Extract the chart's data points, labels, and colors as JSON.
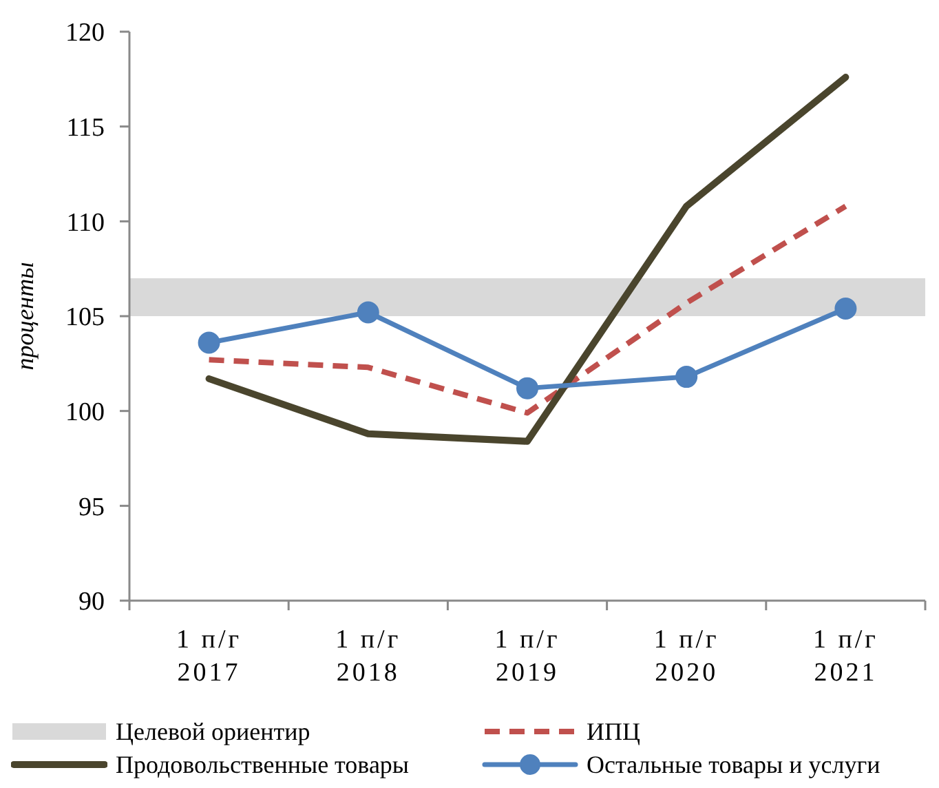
{
  "chart_data": {
    "type": "line",
    "ylabel": "проценты",
    "categories": [
      "1 п/г 2017",
      "1 п/г 2018",
      "1 п/г 2019",
      "1 п/г 2020",
      "1 п/г 2021"
    ],
    "series": [
      {
        "name": "ИПЦ",
        "color": "#c0504d",
        "line_style": "dashed",
        "marker": "none",
        "values": [
          102.7,
          102.3,
          99.9,
          105.7,
          110.8
        ]
      },
      {
        "name": "Продовольственные товары",
        "color": "#4a452d",
        "line_style": "solid",
        "marker": "none",
        "values": [
          101.7,
          98.8,
          98.4,
          110.8,
          117.6
        ]
      },
      {
        "name": "Остальные товары и услуги",
        "color": "#4f81bd",
        "line_style": "solid",
        "marker": "circle",
        "values": [
          103.6,
          105.2,
          101.2,
          101.8,
          105.4
        ]
      }
    ],
    "ylim": [
      90,
      120
    ],
    "yticks": [
      90,
      95,
      100,
      105,
      110,
      115,
      120
    ],
    "bands": [
      {
        "axis": "y",
        "from": 105,
        "to": 107,
        "label": "Целевой ориентир",
        "color": "#d9d9d9"
      }
    ],
    "legend": "bottom"
  }
}
